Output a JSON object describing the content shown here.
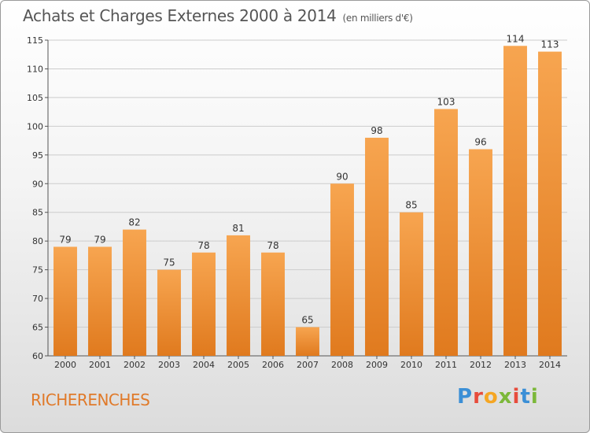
{
  "chart_data": {
    "type": "bar",
    "title": "Achats et Charges Externes 2000 à 2014",
    "subtitle": "(en milliers d'€)",
    "categories": [
      "2000",
      "2001",
      "2002",
      "2003",
      "2004",
      "2005",
      "2006",
      "2007",
      "2008",
      "2009",
      "2010",
      "2011",
      "2012",
      "2013",
      "2014"
    ],
    "values": [
      79,
      79,
      82,
      75,
      78,
      81,
      78,
      65,
      90,
      98,
      85,
      103,
      96,
      114,
      113
    ],
    "ylim": [
      60,
      115
    ],
    "yticks": [
      60,
      65,
      70,
      75,
      80,
      85,
      90,
      95,
      100,
      105,
      110,
      115
    ],
    "grid": true,
    "colors": {
      "bar_light": "#f7a550",
      "bar_dark": "#e07a1e",
      "grid": "#cccccc"
    }
  },
  "footer": {
    "place": "RICHERENCHES",
    "logo_letters": [
      "P",
      "r",
      "o",
      "x",
      "i",
      "t",
      "i"
    ],
    "logo_colors": [
      "#3b8fd6",
      "#e74c3c",
      "#f5a623",
      "#7cb83a",
      "#e74c3c",
      "#3b8fd6",
      "#7cb83a"
    ]
  }
}
